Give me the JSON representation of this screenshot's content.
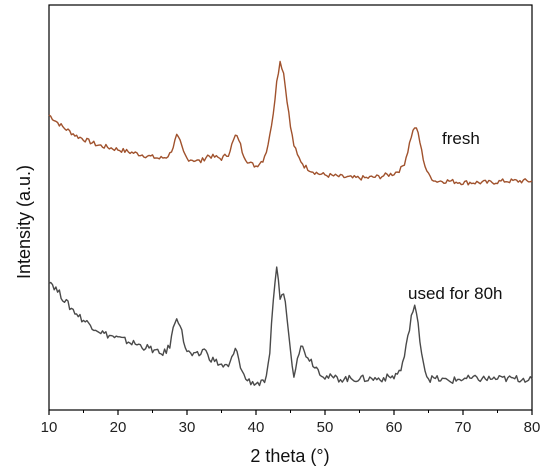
{
  "chart_data": {
    "type": "line",
    "xlabel": "2 theta (°)",
    "ylabel": "Intensity (a.u.)",
    "xlim": [
      10,
      80
    ],
    "x_ticks": [
      10,
      20,
      30,
      40,
      50,
      60,
      70,
      80
    ],
    "grid": false,
    "y_ticks_shown": false,
    "series": [
      {
        "name": "fresh",
        "color": "#a0522d",
        "x": [
          10,
          11,
          12,
          13,
          14,
          15,
          16,
          17,
          18,
          19,
          20,
          21,
          22,
          23,
          24,
          25,
          26,
          27,
          27.5,
          28,
          28.5,
          29,
          29.5,
          30,
          31,
          32,
          33,
          34,
          35,
          36,
          36.5,
          37,
          37.5,
          38,
          38.5,
          39,
          40,
          41,
          41.5,
          42,
          42.5,
          43,
          43.5,
          44,
          44.5,
          45,
          45.5,
          46,
          47,
          48,
          49,
          50,
          52,
          54,
          56,
          58,
          60,
          61,
          61.5,
          62,
          62.5,
          63,
          63.5,
          64,
          64.5,
          65,
          66,
          68,
          70,
          72,
          74,
          76,
          78,
          80
        ],
        "y": [
          100,
          96,
          92,
          89,
          86,
          84,
          82,
          80,
          79,
          78,
          77,
          76,
          75,
          74,
          73,
          72,
          71,
          72,
          74,
          79,
          86,
          82,
          75,
          71,
          70,
          69,
          73,
          72,
          71,
          74,
          80,
          86,
          84,
          76,
          71,
          68,
          66,
          70,
          76,
          86,
          102,
          122,
          136,
          128,
          110,
          92,
          80,
          73,
          66,
          63,
          61,
          60,
          59,
          58,
          58,
          59,
          61,
          64,
          68,
          76,
          86,
          92,
          88,
          76,
          66,
          60,
          56,
          56,
          55,
          55,
          55,
          56,
          56,
          56
        ]
      },
      {
        "name": "used for 80h",
        "color": "#4a4a4a",
        "x": [
          10,
          11,
          12,
          13,
          14,
          15,
          16,
          17,
          18,
          19,
          20,
          21,
          22,
          23,
          24,
          25,
          26,
          27,
          27.5,
          28,
          28.5,
          29,
          29.5,
          30,
          31,
          32,
          32.5,
          33,
          34,
          35,
          36,
          36.5,
          37,
          37.5,
          38,
          38.5,
          39,
          40,
          41,
          41.5,
          42,
          42.5,
          43,
          43.5,
          44,
          44.5,
          45,
          45.5,
          46,
          46.5,
          47,
          48,
          49,
          50,
          52,
          54,
          56,
          58,
          60,
          61,
          61.5,
          62,
          62.5,
          63,
          63.5,
          64,
          64.5,
          65,
          66,
          68,
          70,
          72,
          74,
          76,
          78,
          80
        ],
        "y": [
          64,
          60,
          56,
          52,
          49,
          46,
          44,
          42,
          40,
          39,
          38,
          37,
          36,
          35,
          34,
          33,
          31,
          32,
          35,
          42,
          48,
          44,
          37,
          32,
          30,
          31,
          34,
          30,
          28,
          26,
          25,
          29,
          33,
          29,
          23,
          20,
          19,
          18,
          18,
          20,
          30,
          56,
          70,
          56,
          58,
          48,
          32,
          22,
          30,
          35,
          32,
          28,
          24,
          21,
          20,
          20,
          20,
          20,
          21,
          24,
          30,
          38,
          48,
          52,
          44,
          32,
          24,
          20,
          20,
          19,
          20,
          20,
          20,
          20,
          20,
          20
        ]
      }
    ]
  }
}
